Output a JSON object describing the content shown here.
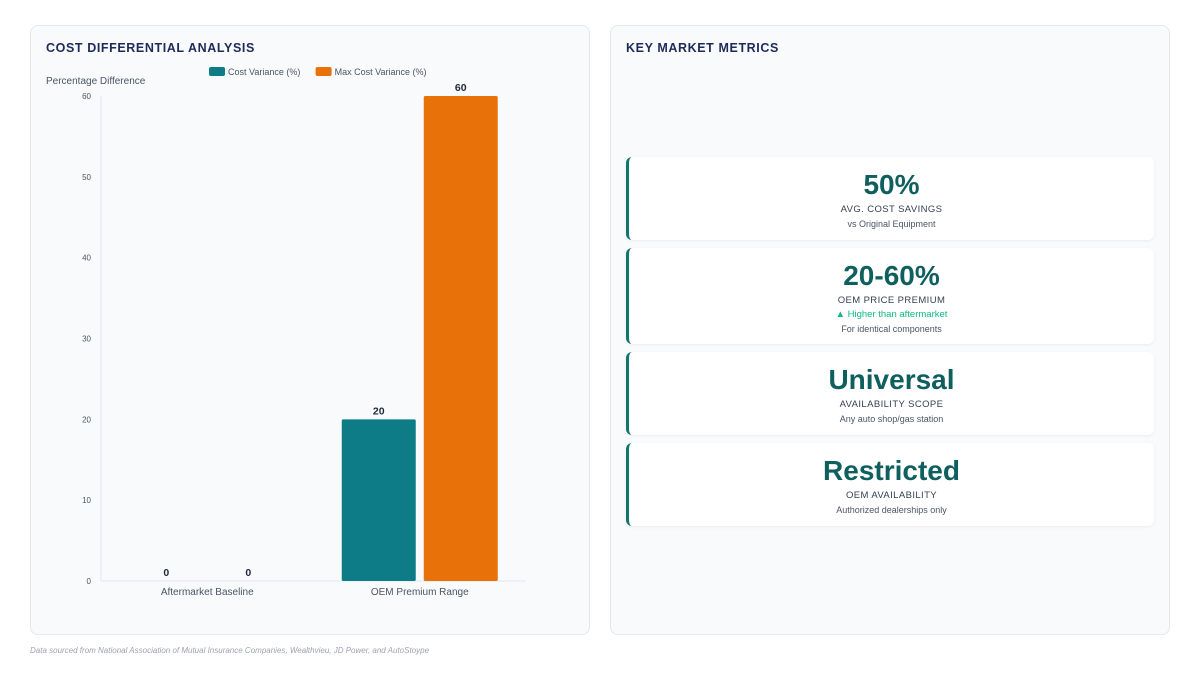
{
  "left_panel": {
    "title": "COST DIFFERENTIAL ANALYSIS"
  },
  "right_panel": {
    "title": "KEY MARKET METRICS"
  },
  "chart_data": {
    "type": "bar",
    "categories": [
      "Aftermarket Baseline",
      "OEM Premium Range"
    ],
    "series": [
      {
        "name": "Cost Variance (%)",
        "values": [
          0,
          20
        ],
        "color": "#0e7c86"
      },
      {
        "name": "Max Cost Variance (%)",
        "values": [
          0,
          60
        ],
        "color": "#e8710a"
      }
    ],
    "ylabel": "Percentage Difference",
    "xlabel": "",
    "ylim": [
      0,
      60
    ],
    "yticks": [
      0,
      10,
      20,
      30,
      40,
      50,
      60
    ],
    "grid": false,
    "legend_position": "top-center",
    "data_labels": true
  },
  "metrics": [
    {
      "value": "50%",
      "label": "AVG. COST SAVINGS",
      "trend": "",
      "sub": "vs Original Equipment"
    },
    {
      "value": "20-60%",
      "label": "OEM PRICE PREMIUM",
      "trend": "▲ Higher than aftermarket",
      "sub": "For identical components"
    },
    {
      "value": "Universal",
      "label": "AVAILABILITY SCOPE",
      "trend": "",
      "sub": "Any auto shop/gas station"
    },
    {
      "value": "Restricted",
      "label": "OEM AVAILABILITY",
      "trend": "",
      "sub": "Authorized dealerships only"
    }
  ],
  "footer": {
    "source": "Data sourced from National Association of Mutual Insurance Companies, Wealthvieu, JD Power, and AutoStoype"
  }
}
